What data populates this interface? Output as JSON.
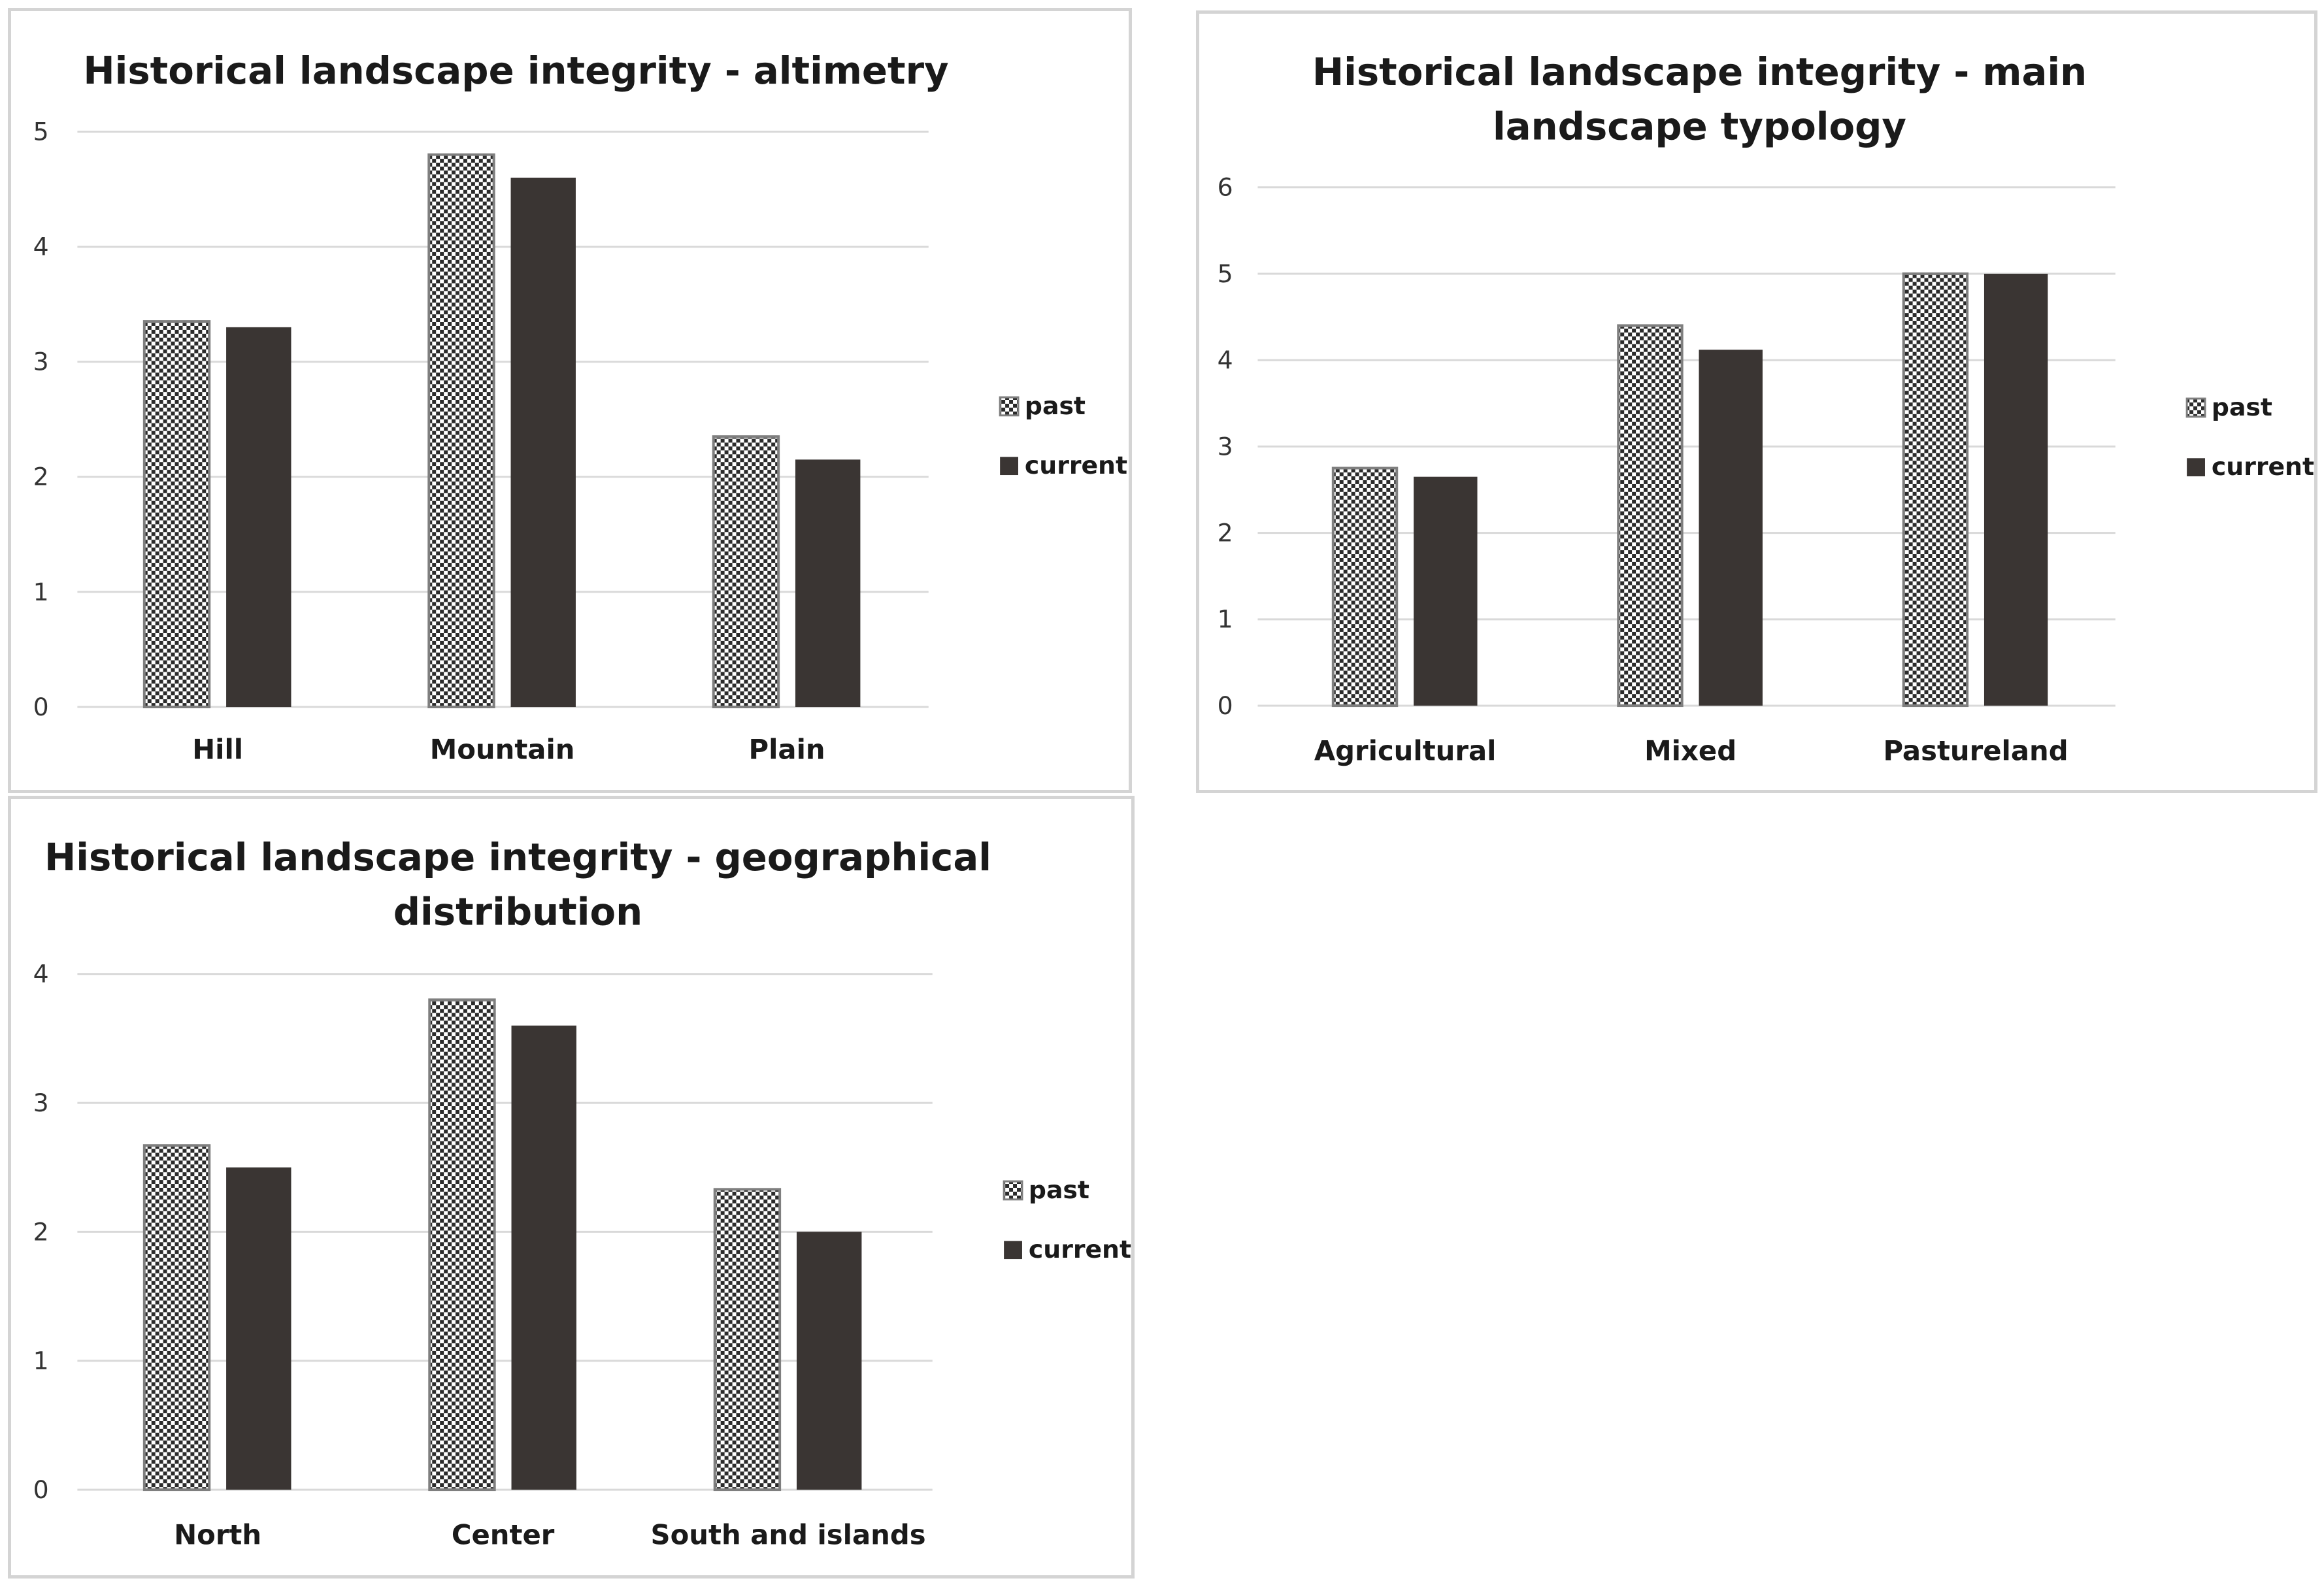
{
  "colors": {
    "background": "#ffffff",
    "panel_border": "#d4d4d4",
    "gridline": "#d9d9d9",
    "past_check_dark": "#2b2b2b",
    "past_check_light": "#ffffff",
    "past_outline": "#7f7f7f",
    "current_fill": "#3a3533",
    "text": "#1a1a1a"
  },
  "chart_data": [
    {
      "type": "bar",
      "title_lines": [
        "Historical landscape integrity - altimetry"
      ],
      "categories": [
        "Hill",
        "Mountain",
        "Plain"
      ],
      "series": [
        {
          "name": "past",
          "pattern": "checkerboard",
          "values": [
            3.35,
            4.8,
            2.35
          ]
        },
        {
          "name": "current",
          "pattern": "solid",
          "values": [
            3.3,
            4.6,
            2.15
          ]
        }
      ],
      "ylim": [
        0,
        5
      ],
      "yticks": [
        0,
        1,
        2,
        3,
        4,
        5
      ],
      "xlabel": "",
      "ylabel": "",
      "grid": true,
      "legend_position": "right"
    },
    {
      "type": "bar",
      "title_lines": [
        "Historical landscape integrity - main",
        "landscape typology"
      ],
      "categories": [
        "Agricultural",
        "Mixed",
        "Pastureland"
      ],
      "series": [
        {
          "name": "past",
          "pattern": "checkerboard",
          "values": [
            2.75,
            4.4,
            5.0
          ]
        },
        {
          "name": "current",
          "pattern": "solid",
          "values": [
            2.65,
            4.12,
            5.0
          ]
        }
      ],
      "ylim": [
        0,
        6
      ],
      "yticks": [
        0,
        1,
        2,
        3,
        4,
        5,
        6
      ],
      "xlabel": "",
      "ylabel": "",
      "grid": true,
      "legend_position": "right"
    },
    {
      "type": "bar",
      "title_lines": [
        "Historical landscape integrity - geographical",
        "distribution"
      ],
      "categories": [
        "North",
        "Center",
        "South and islands"
      ],
      "series": [
        {
          "name": "past",
          "pattern": "checkerboard",
          "values": [
            2.67,
            3.8,
            2.33
          ]
        },
        {
          "name": "current",
          "pattern": "solid",
          "values": [
            2.5,
            3.6,
            2.0
          ]
        }
      ],
      "ylim": [
        0,
        4
      ],
      "yticks": [
        0,
        1,
        2,
        3,
        4
      ],
      "xlabel": "",
      "ylabel": "",
      "grid": true,
      "legend_position": "right"
    }
  ]
}
